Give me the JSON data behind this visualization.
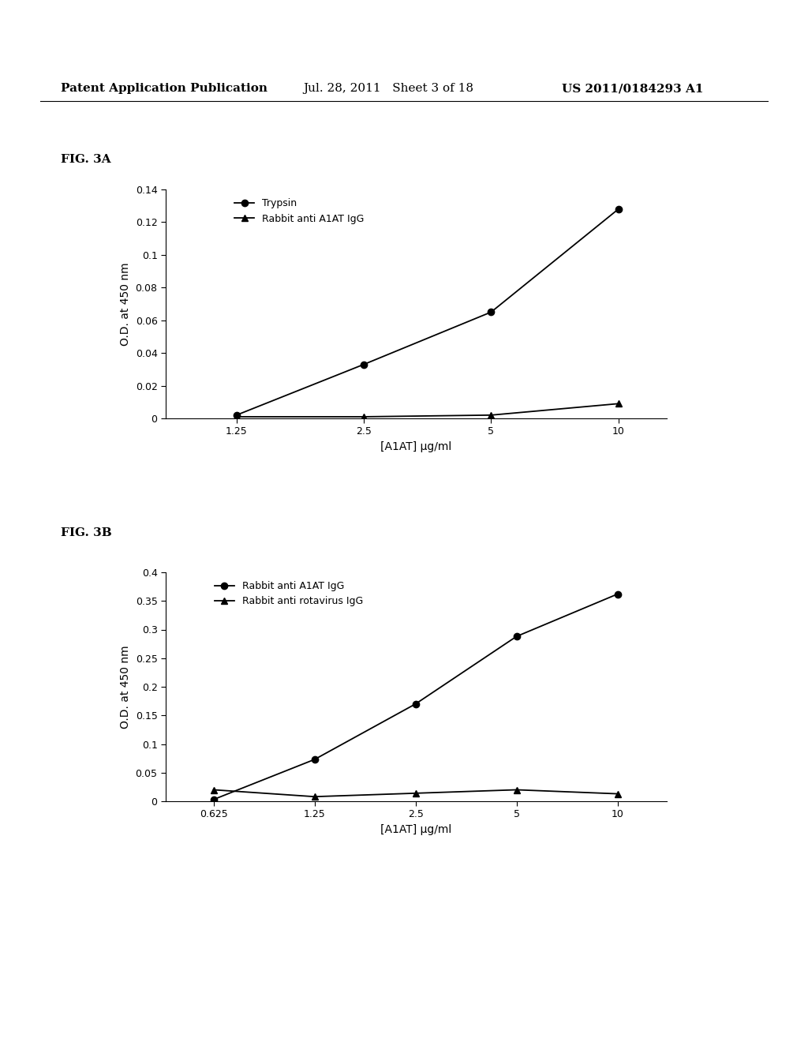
{
  "header_left": "Patent Application Publication",
  "header_mid": "Jul. 28, 2011   Sheet 3 of 18",
  "header_right": "US 2011/0184293 A1",
  "fig3a_label": "FIG. 3A",
  "fig3a_xlabel": "[A1AT] μg/ml",
  "fig3a_ylabel": "O.D. at 450 nm",
  "fig3a_xticks": [
    1.25,
    2.5,
    5,
    10
  ],
  "fig3a_xticklabels": [
    "1.25",
    "2.5",
    "5",
    "10"
  ],
  "fig3a_ylim": [
    0,
    0.14
  ],
  "fig3a_yticks": [
    0,
    0.02,
    0.04,
    0.06,
    0.08,
    0.1,
    0.12,
    0.14
  ],
  "fig3a_yticklabels": [
    "0",
    "0.02",
    "0.04",
    "0.06",
    "0.08",
    "0.1",
    "0.12",
    "0.14"
  ],
  "fig3a_series1_x": [
    1.25,
    2.5,
    5,
    10
  ],
  "fig3a_series1_y": [
    0.002,
    0.033,
    0.065,
    0.128
  ],
  "fig3a_series1_label": "Trypsin",
  "fig3a_series1_marker": "o",
  "fig3a_series2_x": [
    1.25,
    2.5,
    5,
    10
  ],
  "fig3a_series2_y": [
    0.001,
    0.001,
    0.002,
    0.009
  ],
  "fig3a_series2_label": "Rabbit anti A1AT IgG",
  "fig3a_series2_marker": "^",
  "fig3b_label": "FIG. 3B",
  "fig3b_xlabel": "[A1AT] μg/ml",
  "fig3b_ylabel": "O.D. at 450 nm",
  "fig3b_xticks": [
    0.625,
    1.25,
    2.5,
    5,
    10
  ],
  "fig3b_xticklabels": [
    "0.625",
    "1.25",
    "2.5",
    "5",
    "10"
  ],
  "fig3b_ylim": [
    0,
    0.4
  ],
  "fig3b_yticks": [
    0,
    0.05,
    0.1,
    0.15,
    0.2,
    0.25,
    0.3,
    0.35,
    0.4
  ],
  "fig3b_yticklabels": [
    "0",
    "0.05",
    "0.1",
    "0.15",
    "0.2",
    "0.25",
    "0.3",
    "0.35",
    "0.4"
  ],
  "fig3b_series1_x": [
    0.625,
    1.25,
    2.5,
    5,
    10
  ],
  "fig3b_series1_y": [
    0.003,
    0.073,
    0.17,
    0.288,
    0.362
  ],
  "fig3b_series1_label": "Rabbit anti A1AT IgG",
  "fig3b_series1_marker": "o",
  "fig3b_series2_x": [
    0.625,
    1.25,
    2.5,
    5,
    10
  ],
  "fig3b_series2_y": [
    0.02,
    0.008,
    0.014,
    0.02,
    0.013
  ],
  "fig3b_series2_label": "Rabbit anti rotavirus IgG",
  "fig3b_series2_marker": "^",
  "line_color": "#000000",
  "bg_color": "#ffffff",
  "font_size_header": 11,
  "font_size_label": 10,
  "font_size_tick": 9,
  "font_size_legend": 9,
  "font_size_figlabel": 11
}
